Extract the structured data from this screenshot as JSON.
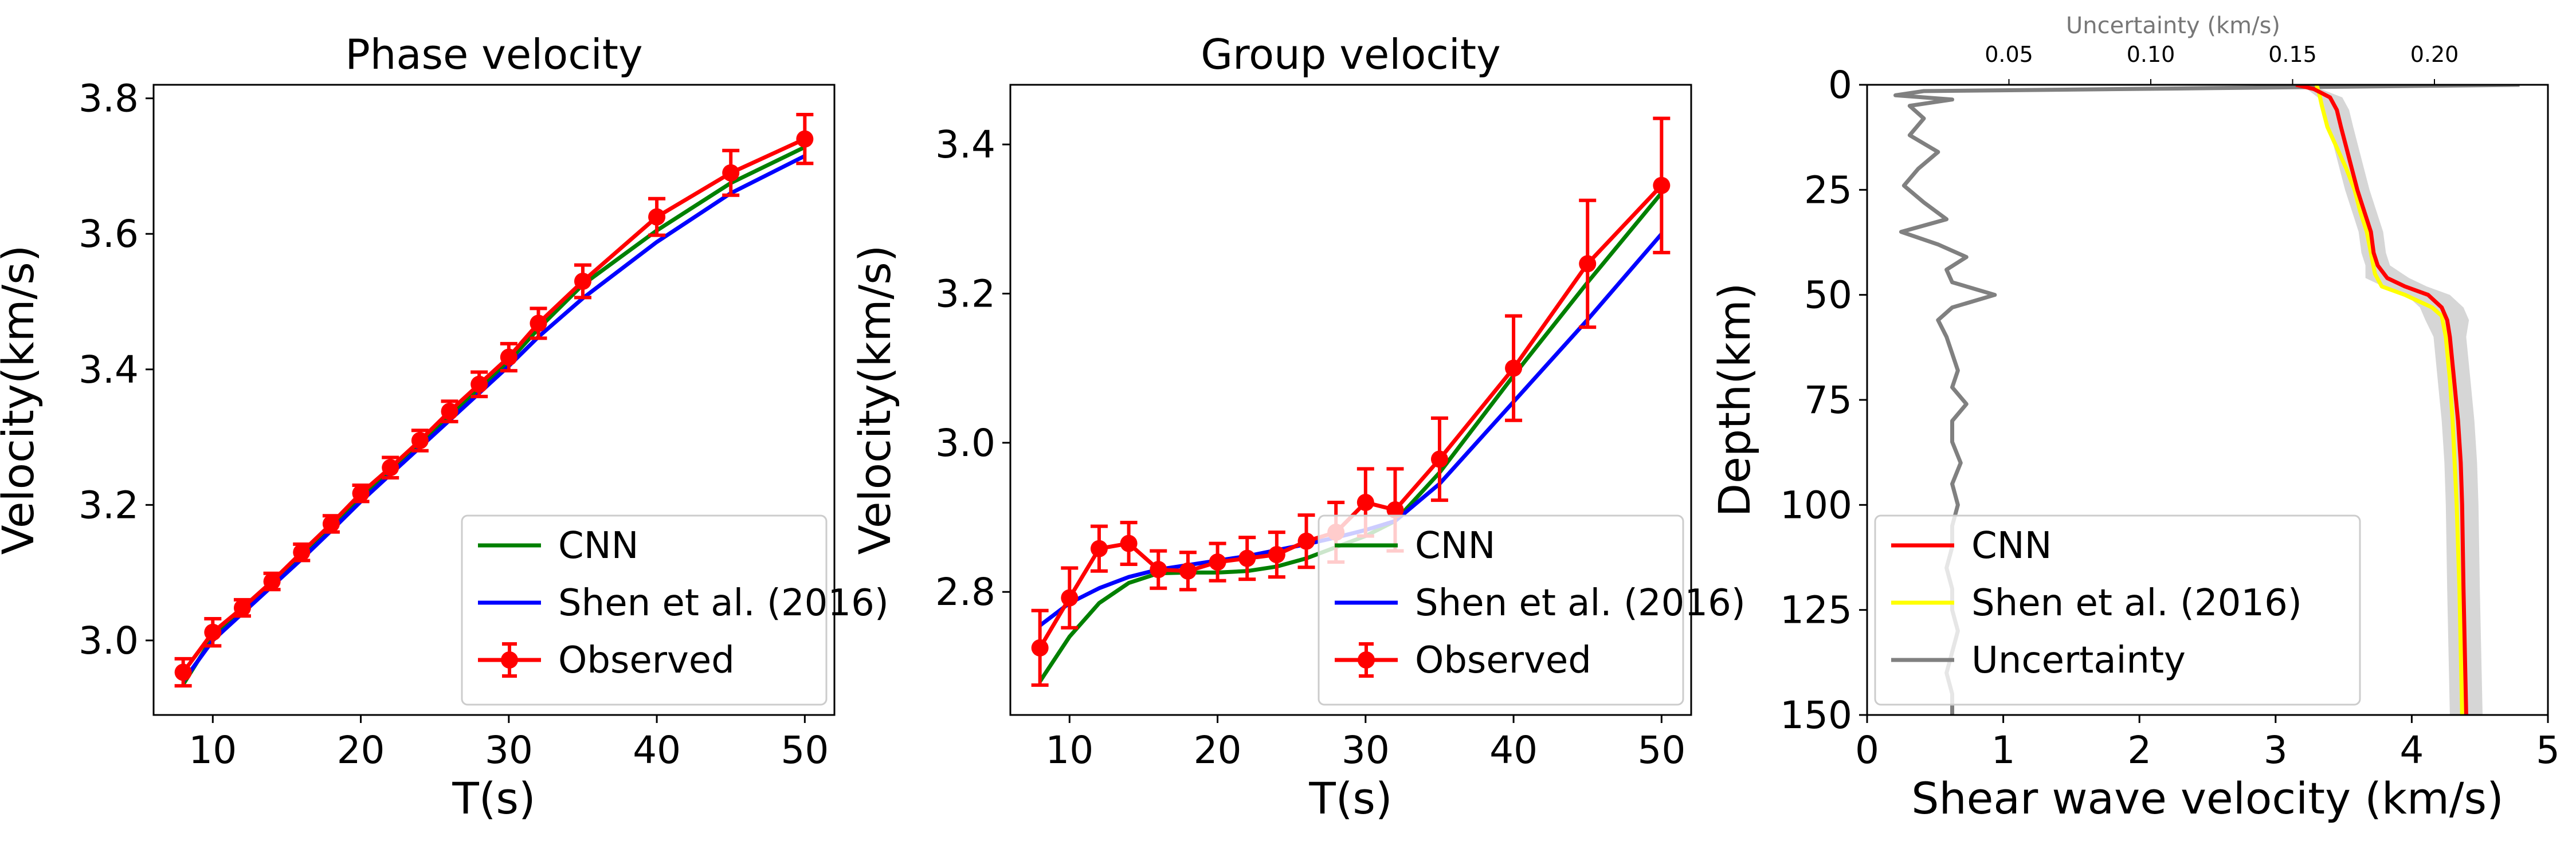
{
  "chart_data": [
    {
      "type": "line",
      "title": "Phase velocity",
      "xlabel": "T(s)",
      "ylabel": "Velocity(km/s)",
      "xlim": [
        6,
        52
      ],
      "ylim": [
        2.89,
        3.82
      ],
      "xticks": [
        10,
        20,
        30,
        40,
        50
      ],
      "yticks": [
        3.0,
        3.2,
        3.4,
        3.6,
        3.8
      ],
      "xtick_labels": [
        "10",
        "20",
        "30",
        "40",
        "50"
      ],
      "ytick_labels": [
        "3.0",
        "3.2",
        "3.4",
        "3.6",
        "3.8"
      ],
      "legend_position": "lower-right",
      "series": [
        {
          "name": "CNN",
          "color": "#008000",
          "x": [
            8,
            10,
            12,
            14,
            16,
            18,
            20,
            22,
            24,
            26,
            28,
            30,
            32,
            35,
            40,
            45,
            50
          ],
          "y": [
            2.935,
            3.005,
            3.045,
            3.085,
            3.125,
            3.168,
            3.212,
            3.25,
            3.29,
            3.33,
            3.372,
            3.412,
            3.46,
            3.525,
            3.605,
            3.675,
            3.728
          ]
        },
        {
          "name": "Shen et al. (2016)",
          "color": "#0000ff",
          "x": [
            8,
            10,
            12,
            14,
            16,
            18,
            20,
            22,
            24,
            26,
            28,
            30,
            32,
            35,
            40,
            45,
            50
          ],
          "y": [
            2.94,
            3.0,
            3.04,
            3.08,
            3.12,
            3.162,
            3.205,
            3.245,
            3.285,
            3.325,
            3.365,
            3.405,
            3.448,
            3.505,
            3.588,
            3.66,
            3.715
          ]
        },
        {
          "name": "Observed",
          "color": "#ff0000",
          "x": [
            8,
            10,
            12,
            14,
            16,
            18,
            20,
            22,
            24,
            26,
            28,
            30,
            32,
            35,
            40,
            45,
            50
          ],
          "y": [
            2.953,
            3.012,
            3.048,
            3.087,
            3.13,
            3.172,
            3.217,
            3.255,
            3.295,
            3.338,
            3.378,
            3.418,
            3.468,
            3.53,
            3.625,
            3.69,
            3.74
          ],
          "err": [
            0.02,
            0.02,
            0.012,
            0.012,
            0.012,
            0.012,
            0.012,
            0.015,
            0.015,
            0.015,
            0.018,
            0.02,
            0.022,
            0.024,
            0.027,
            0.033,
            0.036
          ]
        }
      ]
    },
    {
      "type": "line",
      "title": "Group velocity",
      "xlabel": "T(s)",
      "ylabel": "Velocity(km/s)",
      "xlim": [
        6,
        52
      ],
      "ylim": [
        2.635,
        3.48
      ],
      "xticks": [
        10,
        20,
        30,
        40,
        50
      ],
      "yticks": [
        2.8,
        3.0,
        3.2,
        3.4
      ],
      "xtick_labels": [
        "10",
        "20",
        "30",
        "40",
        "50"
      ],
      "ytick_labels": [
        "2.8",
        "3.0",
        "3.2",
        "3.4"
      ],
      "legend_position": "lower-right",
      "series": [
        {
          "name": "CNN",
          "color": "#008000",
          "x": [
            8,
            10,
            12,
            14,
            16,
            18,
            20,
            22,
            24,
            26,
            28,
            30,
            32,
            35,
            40,
            45,
            50
          ],
          "y": [
            2.68,
            2.74,
            2.785,
            2.812,
            2.825,
            2.826,
            2.826,
            2.828,
            2.834,
            2.845,
            2.86,
            2.875,
            2.895,
            2.96,
            3.09,
            3.215,
            3.335
          ]
        },
        {
          "name": "Shen et al. (2016)",
          "color": "#0000ff",
          "x": [
            8,
            10,
            12,
            14,
            16,
            18,
            20,
            22,
            24,
            26,
            28,
            30,
            32,
            35,
            40,
            45,
            50
          ],
          "y": [
            2.755,
            2.785,
            2.805,
            2.82,
            2.83,
            2.836,
            2.842,
            2.848,
            2.856,
            2.864,
            2.873,
            2.883,
            2.895,
            2.945,
            3.055,
            3.165,
            3.28
          ]
        },
        {
          "name": "Observed",
          "color": "#ff0000",
          "x": [
            8,
            10,
            12,
            14,
            16,
            18,
            20,
            22,
            24,
            26,
            28,
            30,
            32,
            35,
            40,
            45,
            50
          ],
          "y": [
            2.725,
            2.792,
            2.858,
            2.865,
            2.83,
            2.828,
            2.84,
            2.845,
            2.85,
            2.868,
            2.88,
            2.92,
            2.91,
            2.978,
            3.1,
            3.24,
            3.345
          ],
          "err": [
            0.05,
            0.04,
            0.03,
            0.028,
            0.025,
            0.025,
            0.025,
            0.028,
            0.03,
            0.035,
            0.04,
            0.045,
            0.055,
            0.055,
            0.07,
            0.085,
            0.09
          ]
        }
      ]
    },
    {
      "type": "line",
      "xlabel": "Shear wave velocity (km/s)",
      "ylabel": "Depth(km)",
      "top_xlabel": "Uncertainty (km/s)",
      "xlim": [
        0,
        5
      ],
      "ylim": [
        150,
        0
      ],
      "top_xlim": [
        0,
        0.24
      ],
      "xticks": [
        0,
        1,
        2,
        3,
        4,
        5
      ],
      "yticks": [
        0,
        25,
        50,
        75,
        100,
        125,
        150
      ],
      "top_xticks": [
        0.05,
        0.1,
        0.15,
        0.2
      ],
      "xtick_labels": [
        "0",
        "1",
        "2",
        "3",
        "4",
        "5"
      ],
      "ytick_labels": [
        "0",
        "25",
        "50",
        "75",
        "100",
        "125",
        "150"
      ],
      "top_xtick_labels": [
        "0.05",
        "0.10",
        "0.15",
        "0.20"
      ],
      "legend_position": "lower-left",
      "uncertainty_band_color": "#bbbbbb",
      "series": [
        {
          "name": "CNN",
          "color": "#ff0000",
          "depth": [
            0,
            1,
            3,
            6,
            10,
            15,
            20,
            25,
            30,
            35,
            40,
            43,
            46,
            48,
            50,
            53,
            56,
            60,
            70,
            80,
            90,
            100,
            120,
            150
          ],
          "vs": [
            3.15,
            3.28,
            3.4,
            3.45,
            3.48,
            3.52,
            3.56,
            3.6,
            3.65,
            3.7,
            3.72,
            3.75,
            3.82,
            3.95,
            4.12,
            4.22,
            4.26,
            4.28,
            4.31,
            4.34,
            4.36,
            4.37,
            4.38,
            4.4
          ]
        },
        {
          "name": "Shen et al. (2016)",
          "color": "#ffff00",
          "depth": [
            0,
            2,
            5,
            10,
            15,
            20,
            25,
            30,
            35,
            40,
            45,
            48,
            50,
            53,
            55,
            60,
            70,
            80,
            100,
            120,
            150
          ],
          "vs": [
            3.3,
            3.32,
            3.34,
            3.38,
            3.45,
            3.52,
            3.58,
            3.62,
            3.67,
            3.7,
            3.73,
            3.78,
            3.95,
            4.15,
            4.22,
            4.25,
            4.28,
            4.3,
            4.33,
            4.35,
            4.37
          ]
        },
        {
          "name": "Uncertainty",
          "color": "#808080",
          "depth": [
            0,
            0.8,
            1.5,
            2.5,
            3.5,
            5,
            8,
            12,
            16,
            20,
            24,
            28,
            32,
            35,
            38,
            41,
            44,
            47,
            50,
            53,
            56,
            60,
            64,
            68,
            72,
            76,
            80,
            85,
            90,
            95,
            100,
            105,
            110,
            115,
            120,
            125,
            130,
            135,
            140,
            145,
            150
          ],
          "uncertainty": [
            0.23,
            0.12,
            0.02,
            0.01,
            0.03,
            0.015,
            0.02,
            0.015,
            0.025,
            0.018,
            0.013,
            0.02,
            0.028,
            0.012,
            0.025,
            0.035,
            0.028,
            0.03,
            0.045,
            0.03,
            0.025,
            0.028,
            0.03,
            0.032,
            0.03,
            0.035,
            0.03,
            0.03,
            0.033,
            0.03,
            0.032,
            0.03,
            0.03,
            0.028,
            0.03,
            0.03,
            0.032,
            0.03,
            0.028,
            0.03,
            0.03
          ]
        }
      ]
    }
  ]
}
